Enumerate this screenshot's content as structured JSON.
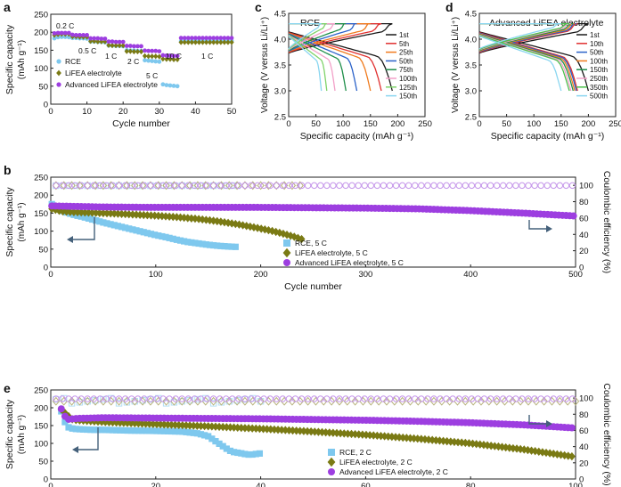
{
  "colors": {
    "rce": "#7ec8ee",
    "lifea": "#7a7a14",
    "adv": "#9d3ee0",
    "rce_ce": "#b3dff5",
    "lifea_ce": "#b6b07a",
    "adv_ce": "#c596ea"
  },
  "chart_data": [
    {
      "panel": "a",
      "type": "scatter",
      "xlabel": "Cycle number",
      "ylabel": "Specific capacity",
      "ylabel_unit": "(mAh g⁻¹)",
      "xlim": [
        0,
        50
      ],
      "ylim": [
        0,
        250
      ],
      "xticks": [
        "0",
        "10",
        "20",
        "30",
        "40",
        "50"
      ],
      "yticks": [
        "0",
        "50",
        "100",
        "150",
        "200",
        "250"
      ],
      "rate_labels": [
        "0.2 C",
        "0.5 C",
        "1 C",
        "2 C",
        "5 C",
        "10 C",
        "1 C"
      ],
      "series": [
        {
          "name": "RCE",
          "color_key": "rce",
          "x": [
            1,
            2,
            3,
            4,
            5,
            6,
            7,
            8,
            9,
            10,
            11,
            12,
            13,
            14,
            15,
            16,
            17,
            18,
            19,
            20,
            21,
            22,
            23,
            24,
            25,
            26,
            27,
            28,
            29,
            30,
            31,
            32,
            33,
            34,
            35,
            36,
            37,
            38,
            39,
            40,
            41,
            42,
            43,
            44,
            45,
            46,
            47,
            48,
            49,
            50
          ],
          "y": [
            183,
            186,
            187,
            187,
            186,
            184,
            184,
            183,
            183,
            182,
            174,
            174,
            173,
            173,
            172,
            163,
            163,
            162,
            162,
            161,
            150,
            149,
            149,
            148,
            148,
            122,
            121,
            120,
            119,
            118,
            55,
            53,
            52,
            51,
            50,
            175,
            176,
            176,
            176,
            176,
            176,
            176,
            176,
            176,
            176,
            176,
            176,
            176,
            176,
            176
          ]
        },
        {
          "name": "LiFEA electrolyte",
          "color_key": "lifea",
          "x": [
            1,
            2,
            3,
            4,
            5,
            6,
            7,
            8,
            9,
            10,
            11,
            12,
            13,
            14,
            15,
            16,
            17,
            18,
            19,
            20,
            21,
            22,
            23,
            24,
            25,
            26,
            27,
            28,
            29,
            30,
            31,
            32,
            33,
            34,
            35,
            36,
            37,
            38,
            39,
            40,
            41,
            42,
            43,
            44,
            45,
            46,
            47,
            48,
            49,
            50
          ],
          "y": [
            192,
            194,
            195,
            195,
            195,
            188,
            188,
            187,
            187,
            187,
            175,
            175,
            174,
            174,
            174,
            164,
            163,
            163,
            163,
            163,
            147,
            147,
            146,
            146,
            146,
            134,
            133,
            133,
            133,
            132,
            126,
            125,
            125,
            124,
            124,
            172,
            172,
            172,
            172,
            172,
            172,
            172,
            172,
            172,
            172,
            172,
            172,
            172,
            172,
            172
          ]
        },
        {
          "name": "Advanced LiFEA electrolyte",
          "color_key": "adv",
          "x": [
            1,
            2,
            3,
            4,
            5,
            6,
            7,
            8,
            9,
            10,
            11,
            12,
            13,
            14,
            15,
            16,
            17,
            18,
            19,
            20,
            21,
            22,
            23,
            24,
            25,
            26,
            27,
            28,
            29,
            30,
            31,
            32,
            33,
            34,
            35,
            36,
            37,
            38,
            39,
            40,
            41,
            42,
            43,
            44,
            45,
            46,
            47,
            48,
            49,
            50
          ],
          "y": [
            197,
            198,
            198,
            198,
            198,
            193,
            192,
            192,
            192,
            192,
            183,
            183,
            183,
            182,
            182,
            174,
            174,
            173,
            173,
            173,
            162,
            162,
            161,
            161,
            161,
            149,
            148,
            148,
            148,
            147,
            136,
            135,
            135,
            134,
            134,
            184,
            184,
            184,
            184,
            184,
            184,
            184,
            184,
            184,
            184,
            184,
            184,
            184,
            184,
            184
          ]
        }
      ]
    },
    {
      "panel": "c",
      "type": "line",
      "title": "RCE",
      "xlabel": "Specific capacity (mAh g⁻¹)",
      "ylabel": "Voltage (V versus Li/Li⁺)",
      "xlim": [
        0,
        250
      ],
      "ylim": [
        2.5,
        4.5
      ],
      "xticks": [
        "0",
        "50",
        "100",
        "150",
        "200",
        "250"
      ],
      "yticks": [
        "2.5",
        "3.0",
        "3.5",
        "4.0",
        "4.5"
      ],
      "series": [
        {
          "name": "1st",
          "color": "#1a1a1a",
          "capacity": 190
        },
        {
          "name": "5th",
          "color": "#e03030",
          "capacity": 170
        },
        {
          "name": "25th",
          "color": "#f07b1e",
          "capacity": 150
        },
        {
          "name": "50th",
          "color": "#2b62c9",
          "capacity": 125
        },
        {
          "name": "75th",
          "color": "#1f8f4a",
          "capacity": 105
        },
        {
          "name": "100th",
          "color": "#f2a0c8",
          "capacity": 85
        },
        {
          "name": "125th",
          "color": "#7fd36a",
          "capacity": 70
        },
        {
          "name": "150th",
          "color": "#8ad6f0",
          "capacity": 60
        }
      ]
    },
    {
      "panel": "d",
      "type": "line",
      "title": "Advanced LiFEA electrolyte",
      "xlabel": "Specific capacity (mAh g⁻¹)",
      "ylabel": "Voltage (V versus Li/Li⁺)",
      "xlim": [
        0,
        250
      ],
      "ylim": [
        2.5,
        4.5
      ],
      "xticks": [
        "0",
        "50",
        "100",
        "150",
        "200",
        "250"
      ],
      "yticks": [
        "2.5",
        "3.0",
        "3.5",
        "4.0",
        "4.5"
      ],
      "series": [
        {
          "name": "1st",
          "color": "#1a1a1a",
          "capacity": 200
        },
        {
          "name": "10th",
          "color": "#e03030",
          "capacity": 180
        },
        {
          "name": "50th",
          "color": "#2b62c9",
          "capacity": 178
        },
        {
          "name": "100th",
          "color": "#f07b1e",
          "capacity": 175
        },
        {
          "name": "150th",
          "color": "#1f8f4a",
          "capacity": 172
        },
        {
          "name": "250th",
          "color": "#f2a0c8",
          "capacity": 168
        },
        {
          "name": "350th",
          "color": "#4cc04c",
          "capacity": 165
        },
        {
          "name": "500th",
          "color": "#8ad6f0",
          "capacity": 150
        }
      ]
    },
    {
      "panel": "b",
      "type": "scatter",
      "xlabel": "Cycle number",
      "ylabel": "Specific capacity",
      "ylabel_unit": "(mAh g⁻¹)",
      "y2label": "Coulombic efficiency (%)",
      "xlim": [
        0,
        500
      ],
      "ylim": [
        0,
        250
      ],
      "y2lim": [
        0,
        110
      ],
      "xticks": [
        "0",
        "100",
        "200",
        "300",
        "400",
        "500"
      ],
      "yticks": [
        "0",
        "50",
        "100",
        "150",
        "200",
        "250"
      ],
      "y2ticks": [
        "0",
        "20",
        "40",
        "60",
        "80",
        "100"
      ],
      "series": [
        {
          "name": "RCE, 5 C",
          "color_key": "rce",
          "x": [
            1,
            5,
            10,
            15,
            20,
            25,
            30,
            40,
            50,
            60,
            70,
            80,
            90,
            100,
            110,
            120,
            130,
            140,
            150,
            160,
            170,
            178
          ],
          "y": [
            175,
            165,
            158,
            152,
            147,
            143,
            140,
            132,
            124,
            117,
            110,
            103,
            96,
            89,
            83,
            76,
            70,
            66,
            62,
            59,
            57,
            56
          ]
        },
        {
          "name": "LiFEA electrolyte, 5 C",
          "color_key": "lifea",
          "x": [
            1,
            10,
            20,
            40,
            60,
            80,
            100,
            120,
            140,
            160,
            180,
            200,
            210,
            220,
            230,
            240
          ],
          "y": [
            162,
            155,
            153,
            151,
            149,
            146,
            143,
            139,
            134,
            127,
            118,
            107,
            101,
            94,
            86,
            77
          ]
        },
        {
          "name": "Advanced LiFEA electrolyte, 5 C",
          "color_key": "adv",
          "x": [
            1,
            50,
            100,
            150,
            200,
            250,
            300,
            350,
            400,
            450,
            500
          ],
          "y": [
            170,
            167,
            166,
            166,
            166,
            165,
            164,
            162,
            157,
            150,
            142
          ]
        }
      ],
      "ce_series": [
        {
          "name": "RCE CE",
          "color_key": "rce_ce",
          "x_end": 178,
          "value": 99.6
        },
        {
          "name": "LiFEA CE",
          "color_key": "lifea_ce",
          "x_end": 240,
          "value": 99.8
        },
        {
          "name": "Advanced CE",
          "color_key": "adv_ce",
          "x_end": 500,
          "value": 99.8
        }
      ]
    },
    {
      "panel": "e",
      "type": "scatter",
      "xlabel": "Cycle number",
      "ylabel": "Specific capacity",
      "ylabel_unit": "(mAh g⁻¹)",
      "y2label": "Coulombic efficiency (%)",
      "xlim": [
        0,
        100
      ],
      "ylim": [
        0,
        250
      ],
      "y2lim": [
        0,
        110
      ],
      "xticks": [
        "0",
        "20",
        "40",
        "60",
        "80",
        "100"
      ],
      "yticks": [
        "0",
        "50",
        "100",
        "150",
        "200",
        "250"
      ],
      "y2ticks": [
        "0",
        "20",
        "40",
        "60",
        "80",
        "100"
      ],
      "series": [
        {
          "name": "RCE, 2 C",
          "color_key": "rce",
          "x": [
            2,
            3,
            4,
            5,
            8,
            10,
            15,
            20,
            25,
            28,
            30,
            31,
            32,
            33,
            34,
            35,
            36,
            37,
            38,
            39,
            40
          ],
          "y": [
            190,
            147,
            142,
            140,
            138,
            138,
            136,
            135,
            133,
            128,
            120,
            110,
            100,
            90,
            80,
            75,
            73,
            70,
            68,
            70,
            72
          ]
        },
        {
          "name": "LiFEA electrolyte, 2 C",
          "color_key": "lifea",
          "x": [
            2,
            4,
            5,
            10,
            20,
            30,
            40,
            50,
            60,
            70,
            80,
            90,
            100
          ],
          "y": [
            195,
            168,
            165,
            160,
            154,
            148,
            141,
            133,
            124,
            113,
            100,
            83,
            62
          ]
        },
        {
          "name": "Advanced LiFEA electrolyte, 2 C",
          "color_key": "adv",
          "x": [
            2,
            3,
            5,
            10,
            20,
            30,
            40,
            50,
            60,
            70,
            80,
            90,
            100
          ],
          "y": [
            197,
            167,
            170,
            172,
            171,
            170,
            169,
            167,
            165,
            162,
            158,
            152,
            143
          ]
        }
      ],
      "ce_series": [
        {
          "name": "RCE CE",
          "color_key": "rce_ce",
          "x_end": 40,
          "value": 96
        },
        {
          "name": "LiFEA CE",
          "color_key": "lifea_ce",
          "x_end": 100,
          "value": 96
        },
        {
          "name": "Advanced CE",
          "color_key": "adv_ce",
          "x_end": 100,
          "value": 99
        }
      ]
    }
  ],
  "panel_labels": [
    "a",
    "b",
    "c",
    "d",
    "e"
  ]
}
